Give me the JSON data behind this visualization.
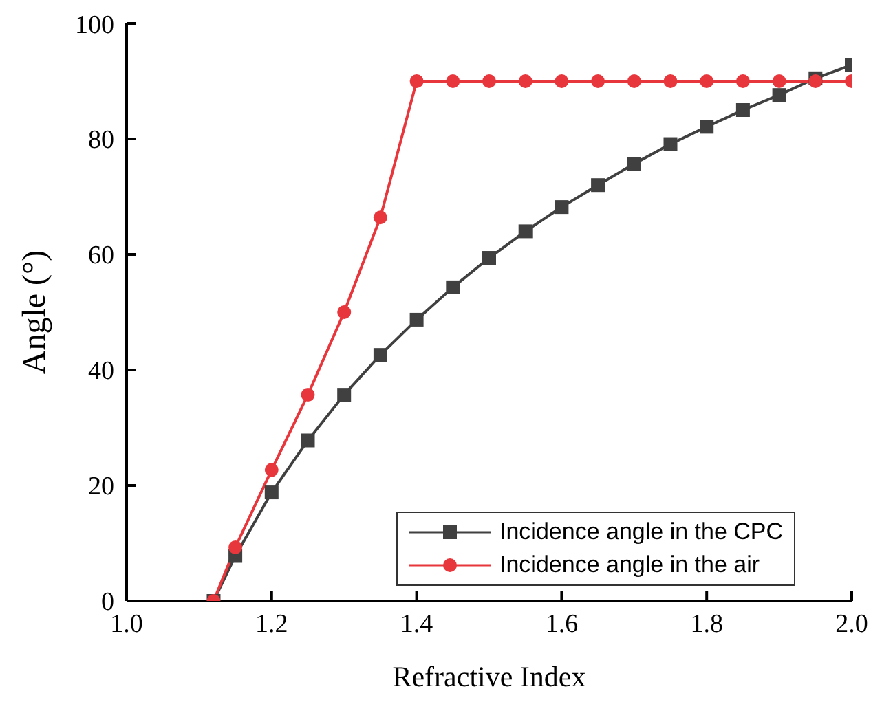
{
  "chart_data": {
    "type": "line",
    "xlabel": "Refractive Index",
    "ylabel": "Angle (°)",
    "xlim": [
      1.0,
      2.0
    ],
    "xticks": [
      {
        "value": 1,
        "label": "1.0"
      },
      1.2,
      1.4,
      1.6,
      1.8,
      {
        "value": 2,
        "label": "2.0"
      }
    ],
    "ylim": [
      0,
      100
    ],
    "yticks": [
      0,
      20,
      40,
      60,
      80,
      100
    ],
    "grid": false,
    "legend": "bottom right",
    "line_style": "solid",
    "series": [
      {
        "name": "Incidence angle in the CPC",
        "color": "#404040",
        "marker": "square",
        "x": [
          1.12,
          1.15,
          1.2,
          1.25,
          1.3,
          1.35,
          1.4,
          1.45,
          1.5,
          1.55,
          1.6,
          1.65,
          1.7,
          1.75,
          1.8,
          1.85,
          1.9,
          1.95,
          2.0
        ],
        "values": [
          0,
          7.8,
          18.8,
          27.8,
          35.7,
          42.6,
          48.7,
          54.3,
          59.4,
          64.0,
          68.2,
          72.0,
          75.7,
          79.1,
          82.1,
          85.0,
          87.6,
          90.5,
          92.8
        ]
      },
      {
        "name": "Incidence angle in the air",
        "color": "#e8373c",
        "marker": "circle",
        "x": [
          1.12,
          1.15,
          1.2,
          1.25,
          1.3,
          1.35,
          1.4,
          1.45,
          1.5,
          1.55,
          1.6,
          1.65,
          1.7,
          1.75,
          1.8,
          1.85,
          1.9,
          1.95,
          2.0
        ],
        "values": [
          0,
          9.3,
          22.7,
          35.7,
          50.0,
          66.4,
          90,
          90,
          90,
          90,
          90,
          90,
          90,
          90,
          90,
          90,
          90,
          90,
          90
        ]
      }
    ]
  }
}
